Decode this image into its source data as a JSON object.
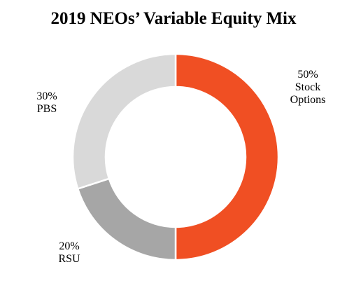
{
  "chart_data": {
    "type": "pie",
    "title": "2019 NEOs’ Variable Equity Mix",
    "donut": true,
    "start_angle_degrees": 0,
    "direction": "clockwise",
    "slices": [
      {
        "label_lines": [
          "50%",
          "Stock",
          "Options"
        ],
        "value": 50,
        "color": "#f04f23"
      },
      {
        "label_lines": [
          "20%",
          "RSU"
        ],
        "value": 20,
        "color": "#a6a6a6"
      },
      {
        "label_lines": [
          "30%",
          "PBS"
        ],
        "value": 30,
        "color": "#d9d9d9"
      }
    ]
  }
}
